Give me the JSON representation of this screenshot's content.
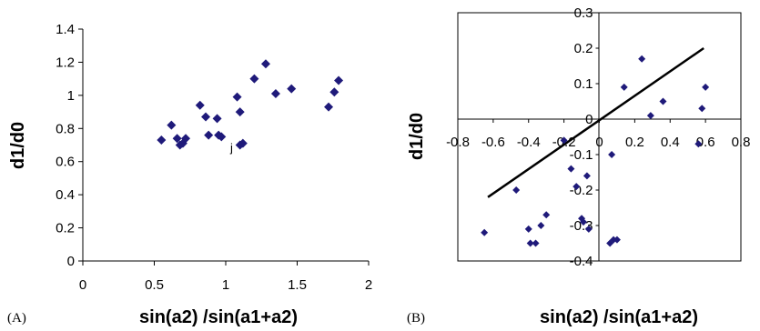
{
  "panels": [
    {
      "label": "(A)"
    },
    {
      "label": "(B)"
    }
  ],
  "chart_data": [
    {
      "type": "scatter",
      "xlabel": "sin(a2) /sin(a1+a2)",
      "ylabel": "d1/d0",
      "xlim": [
        0,
        2
      ],
      "ylim": [
        0,
        1.4
      ],
      "xticks": [
        "0",
        "0.5",
        "1",
        "1.5",
        "2"
      ],
      "yticks": [
        "0",
        "0.2",
        "0.4",
        "0.6",
        "0.8",
        "1",
        "1.2",
        "1.4"
      ],
      "grid": false,
      "marker_color": "#1f1a7a",
      "annotations": [
        {
          "text": "j",
          "x": 1.05,
          "y": 0.65
        }
      ],
      "points": {
        "x": [
          0.55,
          0.62,
          0.66,
          0.68,
          0.7,
          0.72,
          0.82,
          0.86,
          0.88,
          0.94,
          0.95,
          0.97,
          1.08,
          1.1,
          1.1,
          1.12,
          1.2,
          1.28,
          1.35,
          1.46,
          1.72,
          1.76,
          1.79
        ],
        "y": [
          0.73,
          0.82,
          0.74,
          0.7,
          0.71,
          0.74,
          0.94,
          0.87,
          0.76,
          0.86,
          0.76,
          0.75,
          0.99,
          0.9,
          0.7,
          0.71,
          1.1,
          1.19,
          1.01,
          1.04,
          0.93,
          1.02,
          1.09
        ]
      }
    },
    {
      "type": "scatter",
      "xlabel": "sin(a2) /sin(a1+a2)",
      "ylabel": "d1/d0",
      "xlim": [
        -0.8,
        0.8
      ],
      "ylim": [
        -0.4,
        0.3
      ],
      "xticks": [
        "-0.8",
        "-0.6",
        "-0.4",
        "-0.2",
        "0",
        "0.2",
        "0.4",
        "0.6",
        "0.8"
      ],
      "yticks": [
        "0.3",
        "0.2",
        "0.1",
        "0",
        "-0.1",
        "-0.2",
        "-0.3",
        "-0.4"
      ],
      "grid": false,
      "marker_color": "#1f1a7a",
      "trendline": {
        "x": [
          -0.63,
          0.59
        ],
        "y": [
          -0.22,
          0.2
        ]
      },
      "points": {
        "x": [
          -0.65,
          -0.47,
          -0.4,
          -0.39,
          -0.36,
          -0.33,
          -0.3,
          -0.2,
          -0.16,
          -0.13,
          -0.1,
          -0.09,
          -0.07,
          -0.06,
          0.06,
          0.07,
          0.08,
          0.1,
          0.14,
          0.24,
          0.29,
          0.36,
          0.56,
          0.58,
          0.6
        ],
        "y": [
          -0.32,
          -0.2,
          -0.31,
          -0.35,
          -0.35,
          -0.3,
          -0.27,
          -0.06,
          -0.14,
          -0.19,
          -0.28,
          -0.29,
          -0.16,
          -0.31,
          -0.35,
          -0.1,
          -0.34,
          -0.34,
          0.09,
          0.17,
          0.01,
          0.05,
          -0.07,
          0.03,
          0.09
        ]
      }
    }
  ]
}
